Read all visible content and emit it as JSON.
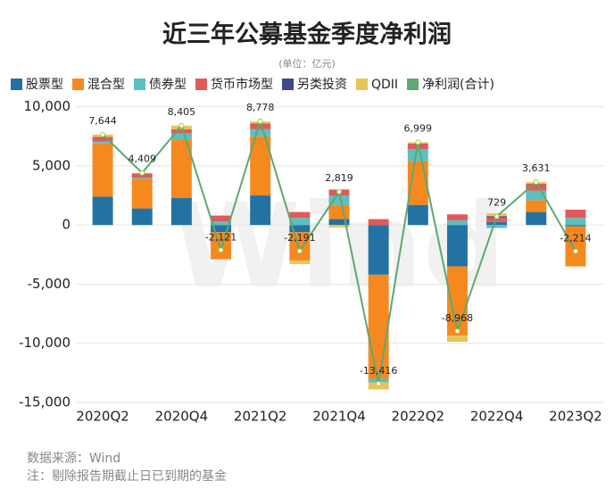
{
  "chart_data": {
    "type": "bar",
    "title": "近三年公募基金季度净利润",
    "subtitle": "(单位：亿元)",
    "watermark": "Wind",
    "source": "数据来源：Wind",
    "note": "注：剔除报告期截止日已到期的基金",
    "categories": [
      "2020Q2",
      null,
      "2020Q4",
      null,
      "2021Q2",
      null,
      "2021Q4",
      null,
      "2022Q2",
      null,
      "2022Q4",
      null,
      "2023Q2"
    ],
    "series": [
      {
        "name": "股票型",
        "color": "#2472a4",
        "values": [
          2400,
          1400,
          2300,
          -600,
          2500,
          -600,
          500,
          -4200,
          1700,
          -3500,
          250,
          1100,
          -100
        ]
      },
      {
        "name": "混合型",
        "color": "#f5891f",
        "values": [
          4500,
          2500,
          4950,
          -2300,
          5000,
          -2400,
          1200,
          -8800,
          3700,
          -5850,
          0,
          1000,
          -3400
        ]
      },
      {
        "name": "债券型",
        "color": "#5bc0c0",
        "values": [
          150,
          100,
          500,
          300,
          600,
          600,
          800,
          -300,
          1000,
          400,
          -250,
          800,
          600
        ]
      },
      {
        "name": "货币市场型",
        "color": "#e05a5a",
        "values": [
          400,
          350,
          350,
          500,
          500,
          500,
          500,
          500,
          500,
          500,
          400,
          600,
          700
        ]
      },
      {
        "name": "另类投资",
        "color": "#3b4a8c",
        "values": [
          0,
          0,
          0,
          0,
          0,
          0,
          0,
          0,
          0,
          0,
          100,
          0,
          0
        ]
      },
      {
        "name": "QDII",
        "color": "#e8c45a",
        "values": [
          200,
          50,
          300,
          0,
          150,
          -300,
          -200,
          -600,
          100,
          -520,
          230,
          130,
          0
        ]
      },
      {
        "name": "净利润(合计)",
        "color": "#5da873",
        "type": "line",
        "values": [
          7644,
          4409,
          8405,
          -2121,
          8778,
          -2191,
          2819,
          -13416,
          6999,
          -8968,
          729,
          3631,
          -2214
        ],
        "value_labels": [
          "7,644",
          "4,409",
          "8,405",
          "-2,121",
          "8,778",
          "-2,191",
          "2,819",
          "-13,416",
          "6,999",
          "-8,968",
          "729",
          "3,631",
          "-2,214"
        ]
      }
    ],
    "ylim": [
      -15000,
      10500
    ],
    "yticks": [
      {
        "value": -15000,
        "label": "-15,000"
      },
      {
        "value": -10000,
        "label": "-10,000"
      },
      {
        "value": -5000,
        "label": "-5,000"
      },
      0,
      {
        "value": 5000,
        "label": "5,000"
      },
      {
        "value": 10000,
        "label": "10,000"
      }
    ],
    "grid": true
  }
}
